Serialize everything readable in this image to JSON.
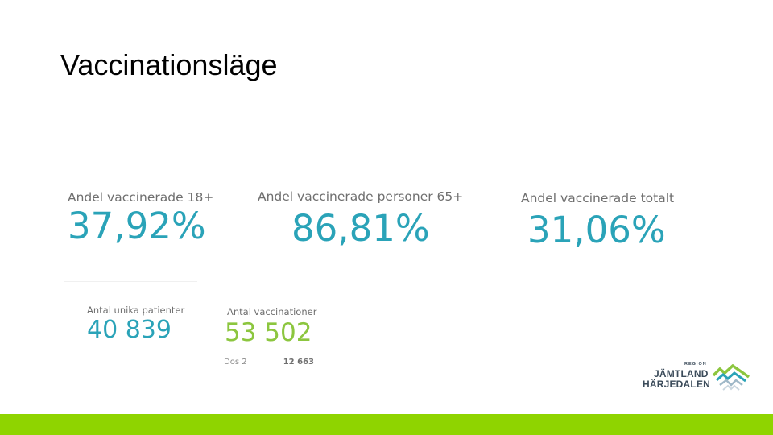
{
  "slide": {
    "title": "Vaccinationsläge"
  },
  "kpis": {
    "adults_18": {
      "label": "Andel vaccinerade 18+",
      "value": "37,92%"
    },
    "persons_65": {
      "label": "Andel vaccinerade personer 65+",
      "value": "86,81%"
    },
    "total": {
      "label": "Andel vaccinerade totalt",
      "value": "31,06%"
    }
  },
  "counts": {
    "unique_patients": {
      "label": "Antal unika patienter",
      "value": "40 839"
    },
    "vaccinations": {
      "label": "Antal vaccinationer",
      "value": "53 502",
      "dose_label": "Dos 2",
      "dose_value": "12 663"
    }
  },
  "logo": {
    "region": "REGION",
    "line1": "JÄMTLAND",
    "line2": "HÄRJEDALEN"
  },
  "colors": {
    "kpi_teal": "#2aa3b8",
    "kpi_green": "#8cc63f",
    "bar_green": "#8fd400"
  }
}
